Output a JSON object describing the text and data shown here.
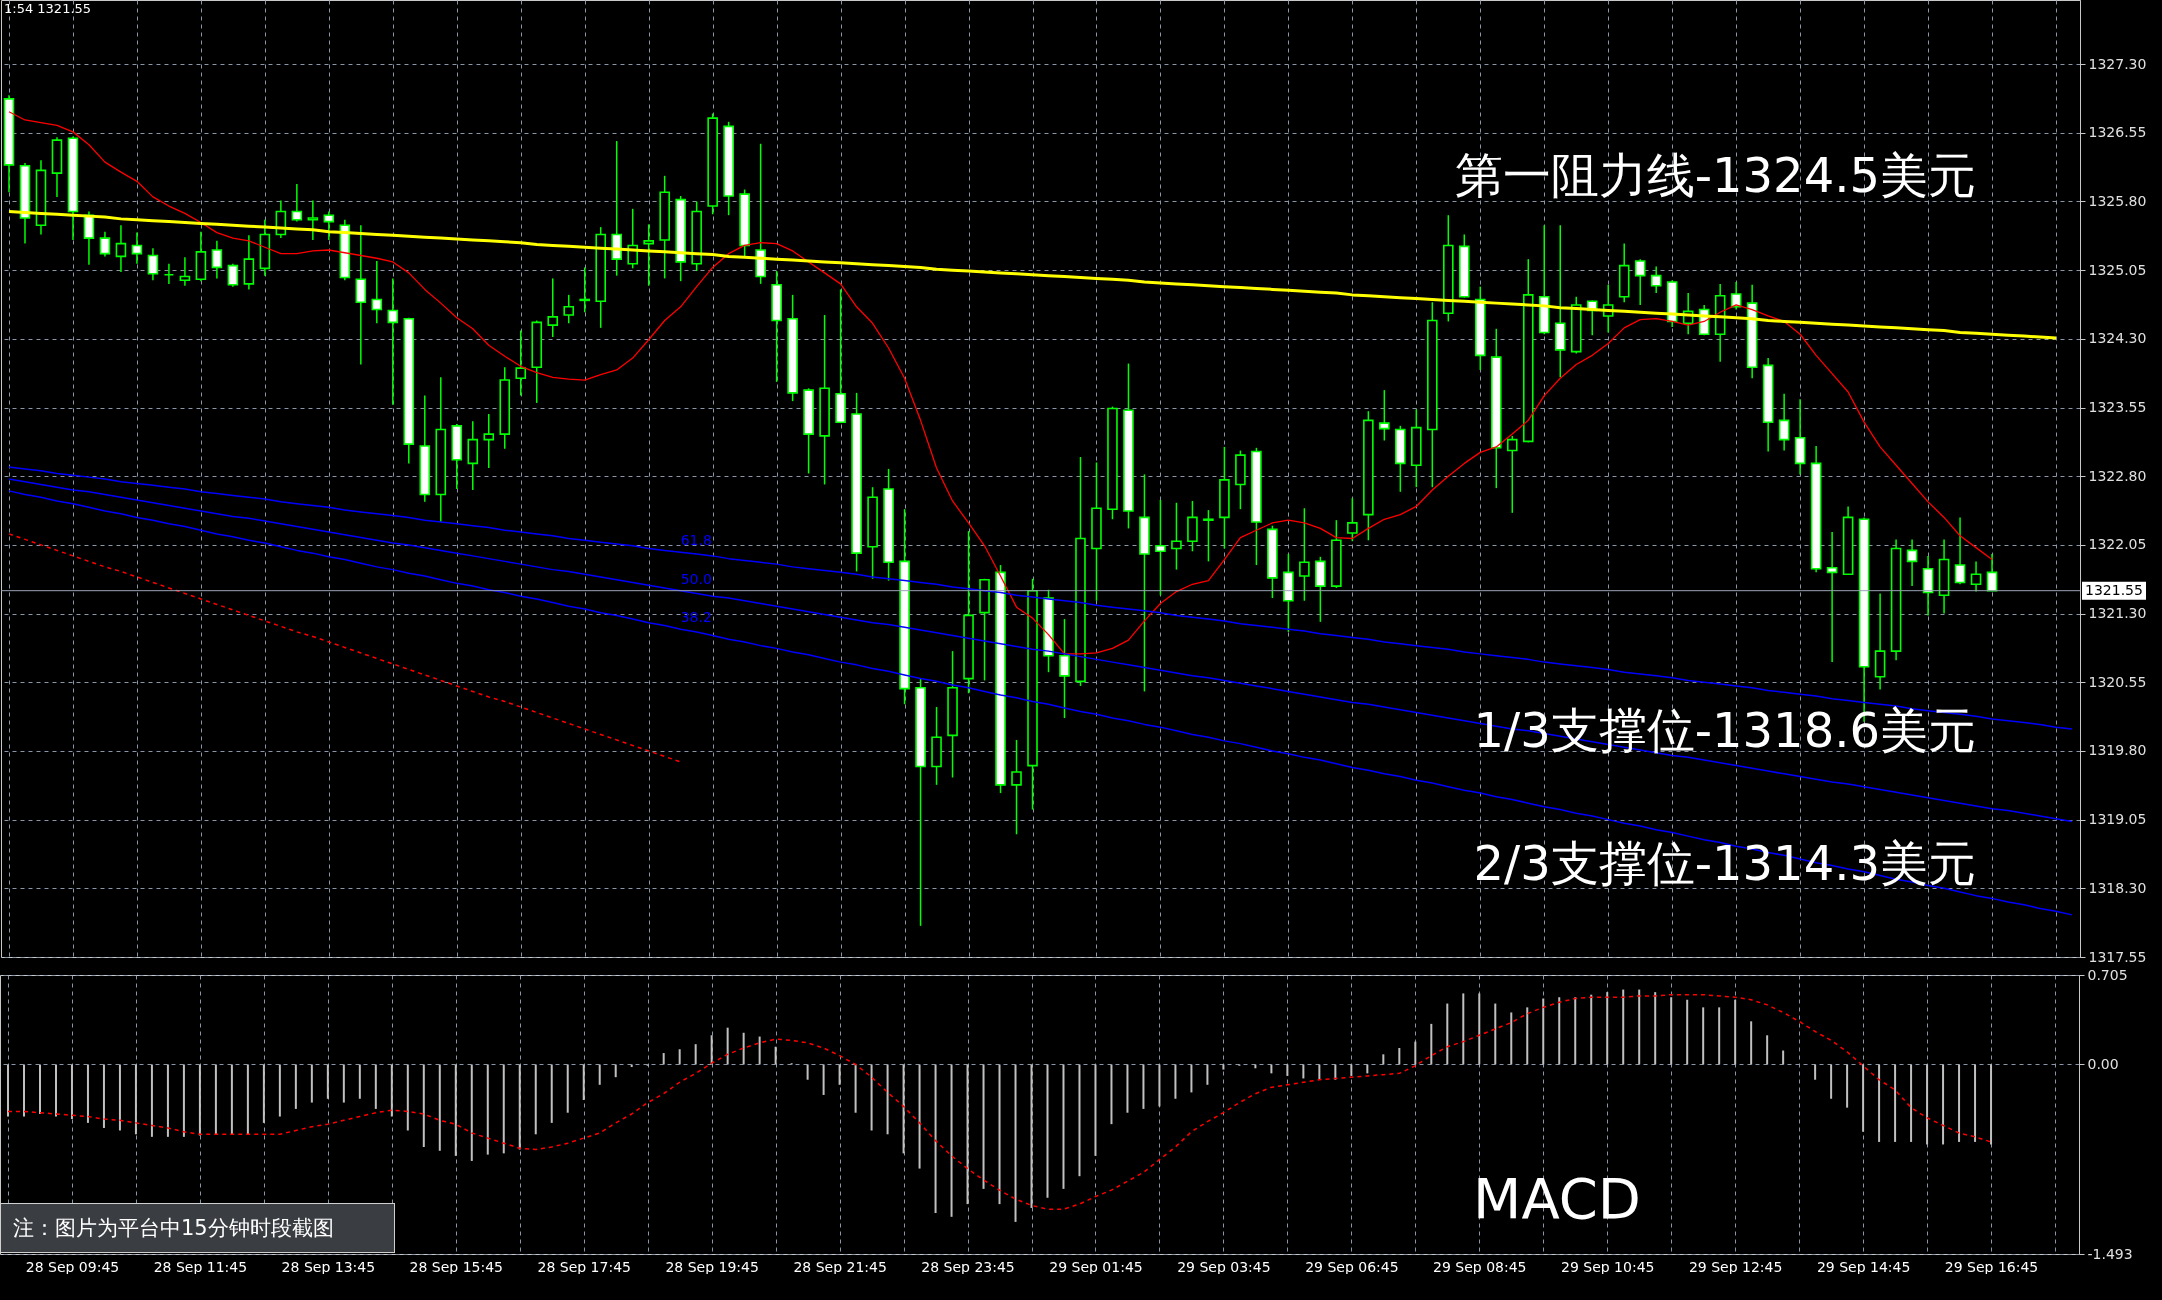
{
  "chart_data": [
    {
      "type": "candlestick",
      "categories": [
        null,
        null,
        null,
        null,
        null,
        null,
        null,
        null,
        null,
        null,
        null,
        null,
        null,
        null,
        null,
        null,
        null,
        null,
        null,
        null,
        null,
        null,
        null,
        null,
        null,
        null,
        null,
        null,
        null,
        null,
        null,
        null,
        null,
        null,
        null,
        null,
        null,
        null,
        null,
        null,
        null,
        null,
        null,
        null,
        null,
        null,
        null,
        null,
        null,
        null,
        null,
        null,
        null,
        null,
        null,
        null,
        null,
        null,
        null,
        null,
        null,
        null,
        null,
        null,
        null,
        null,
        null,
        null,
        null,
        null,
        null,
        null,
        null,
        null,
        null,
        null,
        null,
        null,
        null,
        null,
        null,
        null,
        null,
        null,
        null,
        null,
        null,
        null,
        null,
        null,
        null,
        null,
        null,
        null,
        null,
        null,
        null,
        null,
        null,
        null,
        null,
        null,
        null,
        null,
        null,
        null,
        null,
        null,
        null,
        null,
        null,
        null,
        null,
        null,
        null,
        null,
        null,
        null,
        null,
        null,
        null,
        null,
        null,
        null,
        null,
        null,
        null,
        null,
        null,
        null
      ],
      "ohlc": [
        [
          1326.92,
          1326.96,
          1325.9,
          1326.2
        ],
        [
          1326.19,
          1326.22,
          1325.34,
          1325.62
        ],
        [
          1325.54,
          1326.25,
          1325.44,
          1326.14
        ],
        [
          1326.11,
          1326.5,
          1325.85,
          1326.47
        ],
        [
          1326.49,
          1326.51,
          1325.38,
          1325.69
        ],
        [
          1325.65,
          1325.69,
          1325.11,
          1325.4
        ],
        [
          1325.4,
          1325.47,
          1325.2,
          1325.23
        ],
        [
          1325.2,
          1325.54,
          1325.03,
          1325.34
        ],
        [
          1325.32,
          1325.46,
          1325.12,
          1325.23
        ],
        [
          1325.21,
          1325.29,
          1324.94,
          1325.01
        ],
        [
          1325.0,
          1325.12,
          1324.9,
          1325.0
        ],
        [
          1324.94,
          1325.19,
          1324.88,
          1324.98
        ],
        [
          1324.95,
          1325.47,
          1324.93,
          1325.25
        ],
        [
          1325.27,
          1325.37,
          1324.96,
          1325.08
        ],
        [
          1325.1,
          1325.12,
          1324.87,
          1324.89
        ],
        [
          1324.9,
          1325.43,
          1324.84,
          1325.17
        ],
        [
          1325.07,
          1325.6,
          1324.99,
          1325.44
        ],
        [
          1325.44,
          1325.81,
          1325.4,
          1325.69
        ],
        [
          1325.69,
          1325.99,
          1325.58,
          1325.6
        ],
        [
          1325.6,
          1325.81,
          1325.38,
          1325.62
        ],
        [
          1325.65,
          1325.69,
          1325.38,
          1325.58
        ],
        [
          1325.54,
          1325.6,
          1324.94,
          1324.97
        ],
        [
          1324.95,
          1325.54,
          1324.02,
          1324.7
        ],
        [
          1324.73,
          1325.15,
          1324.47,
          1324.62
        ],
        [
          1324.61,
          1324.96,
          1323.58,
          1324.48
        ],
        [
          1324.52,
          1324.53,
          1322.94,
          1323.15
        ],
        [
          1323.13,
          1323.68,
          1322.52,
          1322.6
        ],
        [
          1322.6,
          1323.88,
          1322.3,
          1323.31
        ],
        [
          1323.35,
          1323.37,
          1322.66,
          1322.98
        ],
        [
          1322.94,
          1323.4,
          1322.65,
          1323.2
        ],
        [
          1323.2,
          1323.48,
          1322.89,
          1323.26
        ],
        [
          1323.26,
          1323.99,
          1323.1,
          1323.85
        ],
        [
          1323.87,
          1324.39,
          1323.68,
          1323.98
        ],
        [
          1323.99,
          1324.5,
          1323.6,
          1324.48
        ],
        [
          1324.45,
          1324.96,
          1324.32,
          1324.54
        ],
        [
          1324.56,
          1324.78,
          1324.47,
          1324.65
        ],
        [
          1324.72,
          1325.08,
          1324.59,
          1324.73
        ],
        [
          1324.71,
          1325.52,
          1324.42,
          1325.44
        ],
        [
          1325.44,
          1326.46,
          1324.99,
          1325.17
        ],
        [
          1325.12,
          1325.72,
          1325.07,
          1325.32
        ],
        [
          1325.34,
          1325.55,
          1324.88,
          1325.37
        ],
        [
          1325.38,
          1326.08,
          1324.96,
          1325.9
        ],
        [
          1325.82,
          1325.86,
          1324.93,
          1325.14
        ],
        [
          1325.12,
          1325.8,
          1325.04,
          1325.69
        ],
        [
          1325.75,
          1326.76,
          1325.66,
          1326.71
        ],
        [
          1326.62,
          1326.67,
          1325.65,
          1325.86
        ],
        [
          1325.88,
          1325.93,
          1325.2,
          1325.32
        ],
        [
          1325.27,
          1326.43,
          1324.9,
          1324.98
        ],
        [
          1324.89,
          1325.04,
          1323.83,
          1324.5
        ],
        [
          1324.52,
          1324.78,
          1323.62,
          1323.71
        ],
        [
          1323.74,
          1323.76,
          1322.83,
          1323.26
        ],
        [
          1323.24,
          1324.56,
          1322.71,
          1323.76
        ],
        [
          1323.7,
          1324.84,
          1323.38,
          1323.39
        ],
        [
          1323.48,
          1323.71,
          1321.76,
          1321.96
        ],
        [
          1322.03,
          1322.68,
          1321.68,
          1322.57
        ],
        [
          1322.66,
          1322.88,
          1321.66,
          1321.86
        ],
        [
          1321.87,
          1322.44,
          1320.31,
          1320.48
        ],
        [
          1320.49,
          1320.59,
          1317.89,
          1319.63
        ],
        [
          1319.63,
          1320.28,
          1319.43,
          1319.95
        ],
        [
          1319.97,
          1320.89,
          1319.51,
          1320.49
        ],
        [
          1320.59,
          1322.2,
          1320.43,
          1321.28
        ],
        [
          1321.31,
          1321.68,
          1320.57,
          1321.67
        ],
        [
          1321.75,
          1321.83,
          1319.34,
          1319.43
        ],
        [
          1319.43,
          1319.92,
          1318.89,
          1319.57
        ],
        [
          1319.64,
          1321.68,
          1319.16,
          1321.55
        ],
        [
          1321.47,
          1321.56,
          1320.66,
          1320.84
        ],
        [
          1320.84,
          1321.24,
          1320.16,
          1320.62
        ],
        [
          1320.56,
          1323.01,
          1320.51,
          1322.12
        ],
        [
          1322.01,
          1322.95,
          1321.44,
          1322.45
        ],
        [
          1322.44,
          1323.56,
          1322.33,
          1323.54
        ],
        [
          1323.52,
          1324.03,
          1322.23,
          1322.42
        ],
        [
          1322.35,
          1322.82,
          1320.45,
          1321.95
        ],
        [
          1322.04,
          1322.54,
          1321.5,
          1321.98
        ],
        [
          1322.01,
          1322.51,
          1321.78,
          1322.09
        ],
        [
          1322.09,
          1322.53,
          1321.98,
          1322.35
        ],
        [
          1322.32,
          1322.43,
          1321.87,
          1322.33
        ],
        [
          1322.35,
          1323.12,
          1322.01,
          1322.76
        ],
        [
          1322.71,
          1323.08,
          1322.44,
          1323.03
        ],
        [
          1323.07,
          1323.11,
          1321.83,
          1322.3
        ],
        [
          1322.22,
          1322.26,
          1321.47,
          1321.69
        ],
        [
          1321.75,
          1321.95,
          1321.1,
          1321.44
        ],
        [
          1321.71,
          1322.45,
          1321.44,
          1321.86
        ],
        [
          1321.87,
          1321.92,
          1321.21,
          1321.6
        ],
        [
          1321.6,
          1322.32,
          1321.58,
          1322.1
        ],
        [
          1322.18,
          1322.56,
          1322.09,
          1322.29
        ],
        [
          1322.38,
          1323.51,
          1322.1,
          1323.41
        ],
        [
          1323.38,
          1323.74,
          1323.19,
          1323.32
        ],
        [
          1323.31,
          1323.35,
          1322.63,
          1322.94
        ],
        [
          1322.92,
          1323.53,
          1322.68,
          1323.33
        ],
        [
          1323.31,
          1324.7,
          1322.68,
          1324.5
        ],
        [
          1324.58,
          1325.65,
          1324.49,
          1325.32
        ],
        [
          1325.31,
          1325.44,
          1324.75,
          1324.76
        ],
        [
          1324.73,
          1324.87,
          1323.96,
          1324.12
        ],
        [
          1324.1,
          1324.41,
          1322.67,
          1323.11
        ],
        [
          1323.08,
          1323.24,
          1322.4,
          1323.2
        ],
        [
          1323.18,
          1325.17,
          1323.17,
          1324.78
        ],
        [
          1324.76,
          1325.54,
          1324.35,
          1324.37
        ],
        [
          1324.47,
          1325.54,
          1323.88,
          1324.18
        ],
        [
          1324.16,
          1324.76,
          1324.14,
          1324.67
        ],
        [
          1324.71,
          1324.72,
          1324.34,
          1324.61
        ],
        [
          1324.55,
          1324.89,
          1324.37,
          1324.67
        ],
        [
          1324.76,
          1325.34,
          1324.7,
          1325.1
        ],
        [
          1325.15,
          1325.17,
          1324.67,
          1324.99
        ],
        [
          1324.99,
          1325.09,
          1324.8,
          1324.88
        ],
        [
          1324.92,
          1324.94,
          1324.43,
          1324.49
        ],
        [
          1324.47,
          1324.8,
          1324.35,
          1324.6
        ],
        [
          1324.62,
          1324.67,
          1324.34,
          1324.35
        ],
        [
          1324.35,
          1324.9,
          1324.05,
          1324.77
        ],
        [
          1324.79,
          1324.92,
          1324.62,
          1324.65
        ],
        [
          1324.69,
          1324.89,
          1323.87,
          1323.99
        ],
        [
          1324.01,
          1324.09,
          1323.07,
          1323.39
        ],
        [
          1323.41,
          1323.7,
          1323.08,
          1323.2
        ],
        [
          1323.22,
          1323.64,
          1322.82,
          1322.94
        ],
        [
          1322.94,
          1323.13,
          1321.75,
          1321.79
        ],
        [
          1321.8,
          1322.19,
          1320.77,
          1321.75
        ],
        [
          1321.73,
          1322.47,
          1321.72,
          1322.35
        ],
        [
          1322.33,
          1322.35,
          1320.12,
          1320.72
        ],
        [
          1320.61,
          1321.52,
          1320.47,
          1320.89
        ],
        [
          1320.89,
          1322.11,
          1320.79,
          1322.01
        ],
        [
          1321.99,
          1322.11,
          1321.6,
          1321.87
        ],
        [
          1321.79,
          1321.93,
          1321.28,
          1321.53
        ],
        [
          1321.5,
          1322.11,
          1321.3,
          1321.89
        ],
        [
          1321.83,
          1322.35,
          1321.62,
          1321.64
        ],
        [
          1321.62,
          1321.87,
          1321.54,
          1321.73
        ],
        [
          1321.75,
          1321.95,
          1321.55,
          1321.55
        ],
        null,
        null,
        null,
        null,
        null
      ],
      "color": "#00ff00",
      "series": [
        {
          "type": "line",
          "color": "#ff0000",
          "values": [
            1326.78,
            1326.69,
            1326.66,
            1326.63,
            1326.56,
            1326.42,
            1326.23,
            1326.12,
            1326.02,
            1325.85,
            1325.75,
            1325.67,
            1325.57,
            1325.46,
            1325.4,
            1325.37,
            1325.3,
            1325.23,
            1325.23,
            1325.26,
            1325.27,
            1325.24,
            1325.21,
            1325.18,
            1325.14,
            1325.02,
            1324.84,
            1324.69,
            1324.53,
            1324.41,
            1324.23,
            1324.11,
            1324.0,
            1323.93,
            1323.88,
            1323.86,
            1323.85,
            1323.91,
            1323.96,
            1324.09,
            1324.29,
            1324.5,
            1324.65,
            1324.87,
            1325.08,
            1325.23,
            1325.32,
            1325.35,
            1325.34,
            1325.26,
            1325.14,
            1325.02,
            1324.9,
            1324.65,
            1324.47,
            1324.2,
            1323.87,
            1323.41,
            1322.89,
            1322.53,
            1322.29,
            1322.04,
            1321.71,
            1321.37,
            1321.25,
            1321.07,
            1320.86,
            1320.86,
            1320.87,
            1320.92,
            1321.01,
            1321.22,
            1321.41,
            1321.54,
            1321.62,
            1321.66,
            1321.89,
            1322.13,
            1322.21,
            1322.29,
            1322.32,
            1322.29,
            1322.23,
            1322.13,
            1322.12,
            1322.23,
            1322.33,
            1322.38,
            1322.47,
            1322.65,
            1322.8,
            1322.94,
            1323.06,
            1323.12,
            1323.26,
            1323.41,
            1323.68,
            1323.87,
            1324.02,
            1324.12,
            1324.25,
            1324.42,
            1324.51,
            1324.52,
            1324.49,
            1324.45,
            1324.49,
            1324.59,
            1324.67,
            1324.62,
            1324.55,
            1324.49,
            1324.35,
            1324.12,
            1323.92,
            1323.72,
            1323.39,
            1323.12,
            1322.92,
            1322.72,
            1322.52,
            1322.35,
            1322.15,
            1322.02,
            1321.89,
            null,
            null,
            null,
            null,
            null
          ]
        },
        {
          "type": "line",
          "color": "#ffff00",
          "values": [
            1325.69,
            1325.68,
            1325.67,
            1325.66,
            1325.65,
            1325.64,
            1325.63,
            1325.61,
            1325.6,
            1325.59,
            1325.58,
            1325.57,
            1325.56,
            1325.55,
            1325.54,
            1325.53,
            1325.52,
            1325.51,
            1325.5,
            1325.49,
            1325.47,
            1325.46,
            1325.45,
            1325.44,
            1325.43,
            1325.42,
            1325.41,
            1325.4,
            1325.39,
            1325.38,
            1325.37,
            1325.36,
            1325.35,
            1325.33,
            1325.32,
            1325.31,
            1325.3,
            1325.29,
            1325.28,
            1325.27,
            1325.26,
            1325.25,
            1325.24,
            1325.23,
            1325.22,
            1325.2,
            1325.19,
            1325.18,
            1325.17,
            1325.16,
            1325.15,
            1325.14,
            1325.13,
            1325.12,
            1325.11,
            1325.1,
            1325.09,
            1325.08,
            1325.06,
            1325.05,
            1325.04,
            1325.03,
            1325.02,
            1325.01,
            1325.0,
            1324.99,
            1324.98,
            1324.97,
            1324.96,
            1324.95,
            1324.94,
            1324.92,
            1324.91,
            1324.9,
            1324.89,
            1324.88,
            1324.87,
            1324.86,
            1324.85,
            1324.84,
            1324.83,
            1324.82,
            1324.81,
            1324.8,
            1324.78,
            1324.77,
            1324.76,
            1324.75,
            1324.74,
            1324.73,
            1324.72,
            1324.71,
            1324.7,
            1324.69,
            1324.68,
            1324.67,
            1324.66,
            1324.64,
            1324.63,
            1324.62,
            1324.61,
            1324.6,
            1324.59,
            1324.58,
            1324.57,
            1324.56,
            1324.55,
            1324.54,
            1324.53,
            1324.52,
            1324.5,
            1324.49,
            1324.48,
            1324.47,
            1324.46,
            1324.45,
            1324.44,
            1324.43,
            1324.42,
            1324.41,
            1324.4,
            1324.39,
            1324.37,
            1324.36,
            1324.35,
            1324.34,
            1324.33,
            1324.32,
            1324.31,
            null
          ]
        },
        {
          "type": "line",
          "name": "61.8",
          "color": "#0000ff",
          "values": [
            1322.9,
            1322.88,
            1322.86,
            1322.83,
            1322.81,
            1322.79,
            1322.77,
            1322.74,
            1322.72,
            1322.7,
            1322.68,
            1322.66,
            1322.63,
            1322.61,
            1322.59,
            1322.57,
            1322.55,
            1322.52,
            1322.5,
            1322.48,
            1322.46,
            1322.43,
            1322.41,
            1322.39,
            1322.37,
            1322.35,
            1322.32,
            1322.3,
            1322.28,
            1322.26,
            1322.24,
            1322.21,
            1322.19,
            1322.17,
            1322.15,
            1322.12,
            1322.1,
            1322.08,
            1322.06,
            1322.04,
            1322.01,
            1321.99,
            1321.97,
            1321.95,
            1321.93,
            1321.9,
            1321.88,
            1321.86,
            1321.84,
            1321.81,
            1321.79,
            1321.77,
            1321.75,
            1321.73,
            1321.7,
            1321.68,
            1321.66,
            1321.64,
            1321.62,
            1321.59,
            1321.57,
            1321.55,
            1321.53,
            1321.5,
            1321.48,
            1321.46,
            1321.44,
            1321.42,
            1321.39,
            1321.37,
            1321.35,
            1321.33,
            1321.31,
            1321.28,
            1321.26,
            1321.24,
            1321.22,
            1321.19,
            1321.17,
            1321.15,
            1321.13,
            1321.11,
            1321.08,
            1321.06,
            1321.04,
            1321.02,
            1320.99,
            1320.97,
            1320.95,
            1320.93,
            1320.91,
            1320.88,
            1320.86,
            1320.84,
            1320.82,
            1320.8,
            1320.77,
            1320.75,
            1320.73,
            1320.71,
            1320.69,
            1320.66,
            1320.64,
            1320.62,
            1320.6,
            1320.57,
            1320.55,
            1320.53,
            1320.51,
            1320.49,
            1320.46,
            1320.44,
            1320.42,
            1320.4,
            1320.37,
            1320.35,
            1320.33,
            1320.31,
            1320.29,
            1320.26,
            1320.24,
            1320.22,
            1320.2,
            1320.18,
            1320.15,
            1320.13,
            1320.11,
            1320.09,
            1320.06,
            1320.04
          ]
        },
        {
          "type": "line",
          "name": "50.0",
          "color": "#0000ff",
          "values": [
            1322.77,
            1322.74,
            1322.71,
            1322.68,
            1322.65,
            1322.63,
            1322.6,
            1322.57,
            1322.54,
            1322.51,
            1322.48,
            1322.45,
            1322.42,
            1322.39,
            1322.36,
            1322.34,
            1322.31,
            1322.28,
            1322.25,
            1322.22,
            1322.19,
            1322.16,
            1322.13,
            1322.1,
            1322.07,
            1322.05,
            1322.02,
            1321.99,
            1321.96,
            1321.93,
            1321.9,
            1321.87,
            1321.84,
            1321.81,
            1321.78,
            1321.76,
            1321.73,
            1321.7,
            1321.67,
            1321.64,
            1321.61,
            1321.58,
            1321.55,
            1321.52,
            1321.49,
            1321.47,
            1321.44,
            1321.41,
            1321.38,
            1321.35,
            1321.32,
            1321.29,
            1321.26,
            1321.23,
            1321.2,
            1321.18,
            1321.15,
            1321.12,
            1321.09,
            1321.06,
            1321.03,
            1321.0,
            1320.97,
            1320.94,
            1320.91,
            1320.89,
            1320.86,
            1320.83,
            1320.8,
            1320.77,
            1320.74,
            1320.71,
            1320.68,
            1320.65,
            1320.62,
            1320.6,
            1320.57,
            1320.54,
            1320.51,
            1320.48,
            1320.45,
            1320.42,
            1320.39,
            1320.36,
            1320.33,
            1320.31,
            1320.28,
            1320.25,
            1320.22,
            1320.19,
            1320.16,
            1320.13,
            1320.1,
            1320.07,
            1320.04,
            1320.02,
            1319.99,
            1319.96,
            1319.93,
            1319.9,
            1319.87,
            1319.84,
            1319.81,
            1319.78,
            1319.75,
            1319.73,
            1319.7,
            1319.67,
            1319.64,
            1319.61,
            1319.58,
            1319.55,
            1319.52,
            1319.49,
            1319.46,
            1319.44,
            1319.41,
            1319.38,
            1319.35,
            1319.32,
            1319.29,
            1319.26,
            1319.23,
            1319.2,
            1319.17,
            1319.15,
            1319.12,
            1319.09,
            1319.06,
            1319.03
          ]
        },
        {
          "type": "line",
          "name": "38.2",
          "color": "#0000ff",
          "values": [
            1322.64,
            1322.6,
            1322.57,
            1322.53,
            1322.5,
            1322.46,
            1322.42,
            1322.39,
            1322.35,
            1322.32,
            1322.28,
            1322.25,
            1322.21,
            1322.17,
            1322.14,
            1322.1,
            1322.07,
            1322.03,
            1321.99,
            1321.96,
            1321.92,
            1321.89,
            1321.85,
            1321.81,
            1321.78,
            1321.74,
            1321.71,
            1321.67,
            1321.63,
            1321.6,
            1321.56,
            1321.53,
            1321.49,
            1321.46,
            1321.42,
            1321.38,
            1321.35,
            1321.31,
            1321.28,
            1321.24,
            1321.2,
            1321.17,
            1321.13,
            1321.1,
            1321.06,
            1321.02,
            1320.99,
            1320.95,
            1320.92,
            1320.88,
            1320.85,
            1320.81,
            1320.77,
            1320.74,
            1320.7,
            1320.67,
            1320.63,
            1320.59,
            1320.56,
            1320.52,
            1320.49,
            1320.45,
            1320.41,
            1320.38,
            1320.34,
            1320.31,
            1320.27,
            1320.23,
            1320.2,
            1320.16,
            1320.13,
            1320.09,
            1320.06,
            1320.02,
            1319.98,
            1319.95,
            1319.91,
            1319.88,
            1319.84,
            1319.8,
            1319.77,
            1319.73,
            1319.7,
            1319.66,
            1319.62,
            1319.59,
            1319.55,
            1319.52,
            1319.48,
            1319.45,
            1319.41,
            1319.37,
            1319.34,
            1319.3,
            1319.27,
            1319.23,
            1319.19,
            1319.16,
            1319.12,
            1319.09,
            1319.05,
            1319.01,
            1318.98,
            1318.94,
            1318.91,
            1318.87,
            1318.83,
            1318.8,
            1318.76,
            1318.73,
            1318.69,
            1318.66,
            1318.62,
            1318.58,
            1318.55,
            1318.51,
            1318.48,
            1318.44,
            1318.4,
            1318.37,
            1318.33,
            1318.3,
            1318.26,
            1318.22,
            1318.19,
            1318.15,
            1318.12,
            1318.08,
            1318.05,
            1318.01
          ]
        },
        {
          "type": "line",
          "color": "#ff0000",
          "line_style": "dashed",
          "values": [
            1322.17,
            1322.11,
            1322.05,
            1321.99,
            1321.93,
            1321.87,
            1321.81,
            1321.76,
            1321.7,
            1321.64,
            1321.58,
            1321.52,
            1321.46,
            1321.4,
            1321.34,
            1321.28,
            1321.22,
            1321.16,
            1321.1,
            1321.05,
            1320.99,
            1320.93,
            1320.87,
            1320.81,
            1320.75,
            1320.69,
            1320.63,
            1320.57,
            1320.51,
            1320.45,
            1320.39,
            1320.34,
            1320.28,
            1320.22,
            1320.16,
            1320.1,
            1320.04,
            1319.98,
            1319.92,
            1319.86,
            1319.8,
            1319.74,
            1319.68,
            null,
            null,
            null,
            null,
            null,
            null,
            null,
            null,
            null,
            null,
            null,
            null,
            null,
            null,
            null,
            null,
            null,
            null,
            null,
            null,
            null,
            null,
            null,
            null,
            null,
            null,
            null,
            null,
            null,
            null,
            null,
            null,
            null,
            null,
            null,
            null,
            null,
            null,
            null,
            null,
            null,
            null,
            null,
            null,
            null,
            null,
            null,
            null,
            null,
            null,
            null,
            null,
            null,
            null,
            null,
            null,
            null,
            null,
            null,
            null,
            null,
            null,
            null,
            null,
            null,
            null,
            null,
            null,
            null,
            null,
            null,
            null,
            null,
            null,
            null,
            null,
            null,
            null,
            null,
            null,
            null,
            null,
            null,
            null,
            null,
            null,
            null
          ]
        }
      ],
      "ylim": [
        1317.55,
        1328.0
      ],
      "yticks": [
        {
          "value": 1327.3,
          "label": "1327.30"
        },
        1326.55,
        {
          "value": 1325.8,
          "label": "1325.80"
        },
        1325.05,
        {
          "value": 1324.3,
          "label": "1324.30"
        },
        1323.55,
        {
          "value": 1322.8,
          "label": "1322.80"
        },
        1322.05,
        {
          "value": 1321.3,
          "label": "1321.30"
        },
        1320.55,
        {
          "value": 1319.8,
          "label": "1319.80"
        },
        1319.05,
        {
          "value": 1318.3,
          "label": "1318.30"
        },
        1317.55
      ],
      "grid": true,
      "tick_labels": "y",
      "ref_lines": [
        {
          "axis": "y",
          "value": 1321.55,
          "label": "1321.55",
          "color": "#9aa4b4"
        }
      ],
      "annotations": [
        "1:54 1321.55",
        "第一阻力线-1324.5美元",
        "1/3支撑位-1318.6美元",
        "2/3支撑位-1314.3美元"
      ]
    },
    {
      "type": "bar",
      "categories": [
        null,
        null,
        null,
        null,
        "28 Sep 09:45",
        null,
        null,
        null,
        null,
        null,
        null,
        null,
        "28 Sep 11:45",
        null,
        null,
        null,
        null,
        null,
        null,
        null,
        "28 Sep 13:45",
        null,
        null,
        null,
        null,
        null,
        null,
        null,
        "28 Sep 15:45",
        null,
        null,
        null,
        null,
        null,
        null,
        null,
        "28 Sep 17:45",
        null,
        null,
        null,
        null,
        null,
        null,
        null,
        "28 Sep 19:45",
        null,
        null,
        null,
        null,
        null,
        null,
        null,
        "28 Sep 21:45",
        null,
        null,
        null,
        null,
        null,
        null,
        null,
        "28 Sep 23:45",
        null,
        null,
        null,
        null,
        null,
        null,
        null,
        "29 Sep 01:45",
        null,
        null,
        null,
        null,
        null,
        null,
        null,
        "29 Sep 03:45",
        null,
        null,
        null,
        null,
        null,
        null,
        null,
        "29 Sep 06:45",
        null,
        null,
        null,
        null,
        null,
        null,
        null,
        "29 Sep 08:45",
        null,
        null,
        null,
        null,
        null,
        null,
        null,
        "29 Sep 10:45",
        null,
        null,
        null,
        null,
        null,
        null,
        null,
        "29 Sep 12:45",
        null,
        null,
        null,
        null,
        null,
        null,
        null,
        "29 Sep 14:45",
        null,
        null,
        null,
        null,
        null,
        null,
        null,
        "29 Sep 16:45",
        null,
        null,
        null,
        null,
        null
      ],
      "series": [
        {
          "type": "bar",
          "color": "#c0c0c0",
          "values": [
            -0.41,
            -0.41,
            -0.39,
            -0.41,
            -0.43,
            -0.46,
            -0.5,
            -0.52,
            -0.55,
            -0.57,
            -0.57,
            -0.57,
            -0.56,
            -0.55,
            -0.55,
            -0.55,
            -0.46,
            -0.41,
            -0.35,
            -0.3,
            -0.27,
            -0.3,
            -0.27,
            -0.35,
            -0.41,
            -0.52,
            -0.65,
            -0.68,
            -0.72,
            -0.76,
            -0.71,
            -0.7,
            -0.67,
            -0.55,
            -0.46,
            -0.38,
            -0.28,
            -0.16,
            -0.1,
            -0.02,
            -0.01,
            0.09,
            0.12,
            0.16,
            0.23,
            0.29,
            0.25,
            0.22,
            0.14,
            0.01,
            -0.12,
            -0.24,
            -0.16,
            -0.38,
            -0.52,
            -0.55,
            -0.7,
            -0.82,
            -1.17,
            -1.2,
            -1.1,
            -0.98,
            -1.1,
            -1.24,
            -1.13,
            -1.05,
            -0.98,
            -0.88,
            -0.72,
            -0.47,
            -0.38,
            -0.35,
            -0.33,
            -0.27,
            -0.22,
            -0.16,
            -0.04,
            -0.01,
            -0.03,
            -0.07,
            -0.09,
            -0.11,
            -0.12,
            -0.12,
            -0.09,
            -0.07,
            0.08,
            0.13,
            0.18,
            0.32,
            0.48,
            0.56,
            0.56,
            0.48,
            0.41,
            0.45,
            0.52,
            0.53,
            0.53,
            0.55,
            0.57,
            0.59,
            0.59,
            0.57,
            0.53,
            0.51,
            0.45,
            0.45,
            0.51,
            0.34,
            0.23,
            0.11,
            0.0,
            -0.12,
            -0.27,
            -0.34,
            -0.53,
            -0.61,
            -0.61,
            -0.61,
            -0.63,
            -0.63,
            -0.61,
            -0.61,
            -0.63,
            null,
            null,
            null,
            null,
            null
          ]
        },
        {
          "type": "line",
          "color": "#ff0000",
          "line_style": "dashed",
          "values": [
            -0.37,
            -0.37,
            -0.38,
            -0.39,
            -0.4,
            -0.41,
            -0.43,
            -0.44,
            -0.46,
            -0.48,
            -0.5,
            -0.53,
            -0.55,
            -0.55,
            -0.55,
            -0.55,
            -0.55,
            -0.55,
            -0.52,
            -0.49,
            -0.47,
            -0.44,
            -0.41,
            -0.38,
            -0.36,
            -0.37,
            -0.39,
            -0.44,
            -0.47,
            -0.54,
            -0.58,
            -0.62,
            -0.66,
            -0.67,
            -0.65,
            -0.62,
            -0.58,
            -0.54,
            -0.46,
            -0.39,
            -0.3,
            -0.23,
            -0.14,
            -0.07,
            0.01,
            0.08,
            0.13,
            0.17,
            0.2,
            0.19,
            0.17,
            0.13,
            0.07,
            0.0,
            -0.1,
            -0.22,
            -0.33,
            -0.46,
            -0.6,
            -0.72,
            -0.82,
            -0.91,
            -0.99,
            -1.06,
            -1.11,
            -1.14,
            -1.14,
            -1.1,
            -1.04,
            -0.99,
            -0.92,
            -0.85,
            -0.75,
            -0.65,
            -0.53,
            -0.45,
            -0.38,
            -0.3,
            -0.23,
            -0.18,
            -0.16,
            -0.14,
            -0.12,
            -0.11,
            -0.1,
            -0.09,
            -0.08,
            -0.07,
            -0.01,
            0.07,
            0.14,
            0.18,
            0.23,
            0.28,
            0.33,
            0.4,
            0.45,
            0.49,
            0.52,
            0.53,
            0.53,
            0.53,
            0.54,
            0.54,
            0.55,
            0.55,
            0.55,
            0.54,
            0.53,
            0.51,
            0.47,
            0.41,
            0.34,
            0.26,
            0.19,
            0.1,
            -0.01,
            -0.12,
            -0.2,
            -0.34,
            -0.42,
            -0.48,
            -0.54,
            -0.57,
            -0.61,
            null,
            null,
            null,
            null,
            null
          ]
        }
      ],
      "ylim": [
        -1.493,
        0.705
      ],
      "yticks": [
        0.705,
        {
          "value": 0,
          "label": "0.00"
        },
        -1.493
      ],
      "grid": true,
      "annotations": [
        "MACD",
        "注：图片为平台中15分钟时段截图"
      ]
    }
  ]
}
